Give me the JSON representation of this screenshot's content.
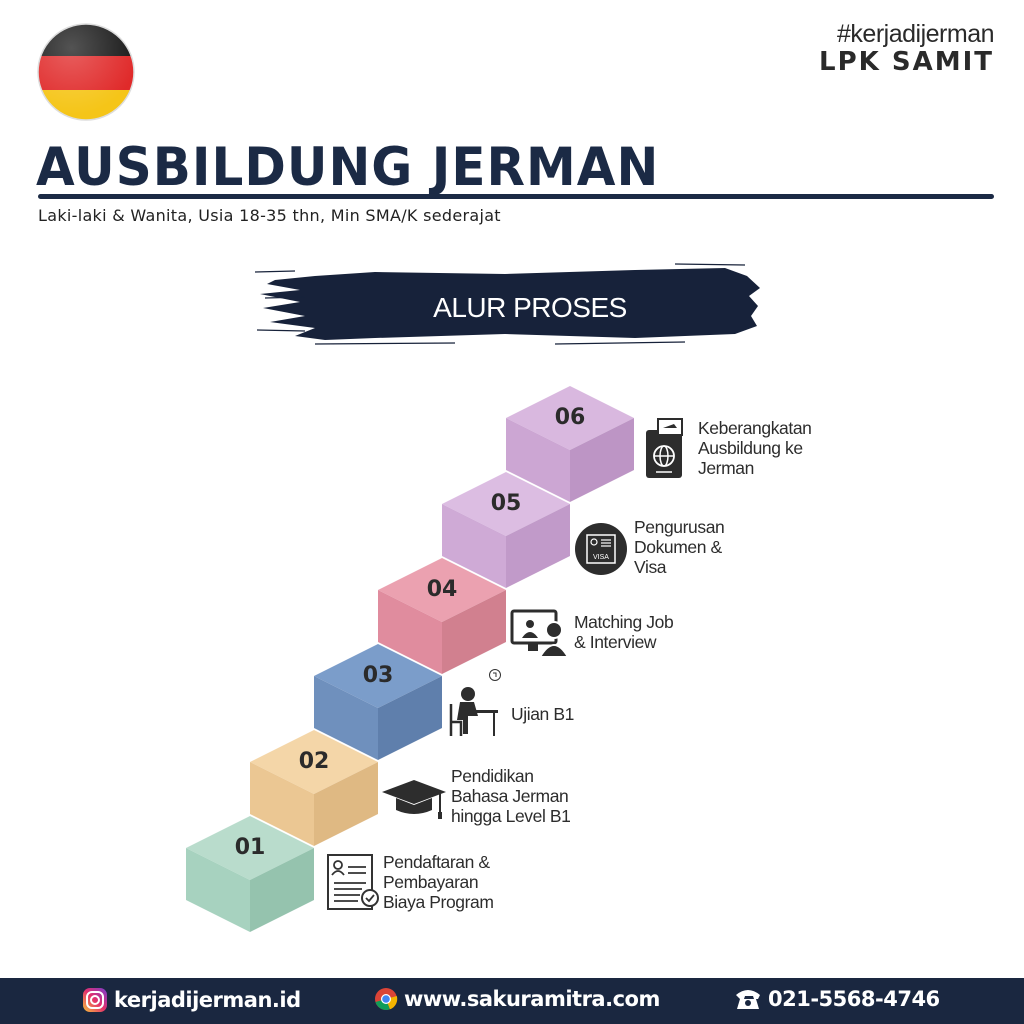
{
  "header": {
    "hashtag": "#kerjadijerman",
    "brand": "LPK SAMIT",
    "title": "AUSBILDUNG JERMAN",
    "subtitle": "Laki-laki & Wanita, Usia 18-35 thn, Min SMA/K sederajat",
    "flag_colors": [
      "#1a1a1a",
      "#e02a2a",
      "#f5c518"
    ]
  },
  "banner": {
    "label": "ALUR PROSES",
    "color": "#17223a"
  },
  "steps": [
    {
      "number": "01",
      "label": "Pendaftaran &\nPembayaran\nBiaya Program",
      "icon": "registration-form-icon",
      "colors": [
        "#b9dccc",
        "#a7d2bf",
        "#95c3ae"
      ]
    },
    {
      "number": "02",
      "label": "Pendidikan\nBahasa Jerman\nhingga Level B1",
      "icon": "graduation-cap-icon",
      "colors": [
        "#f4d6a8",
        "#ebc793",
        "#dfb983"
      ]
    },
    {
      "number": "03",
      "label": "Ujian B1",
      "icon": "student-exam-icon",
      "colors": [
        "#7b9dca",
        "#6f90bd",
        "#5f7fac"
      ]
    },
    {
      "number": "04",
      "label": "Matching Job\n& Interview",
      "icon": "video-interview-icon",
      "colors": [
        "#eba1b0",
        "#e08c9e",
        "#d1808f"
      ]
    },
    {
      "number": "05",
      "label": "Pengurusan\nDokumen &\nVisa",
      "icon": "visa-icon",
      "colors": [
        "#dcbde2",
        "#cfaad6",
        "#c19ac9"
      ]
    },
    {
      "number": "06",
      "label": "Keberangkatan\nAusbildung ke\nJerman",
      "icon": "passport-icon",
      "colors": [
        "#d9b8df",
        "#cca6d3",
        "#bd95c5"
      ]
    }
  ],
  "footer": {
    "instagram": "kerjadijerman.id",
    "website": "www.sakuramitra.com",
    "phone": "021-5568-4746"
  }
}
